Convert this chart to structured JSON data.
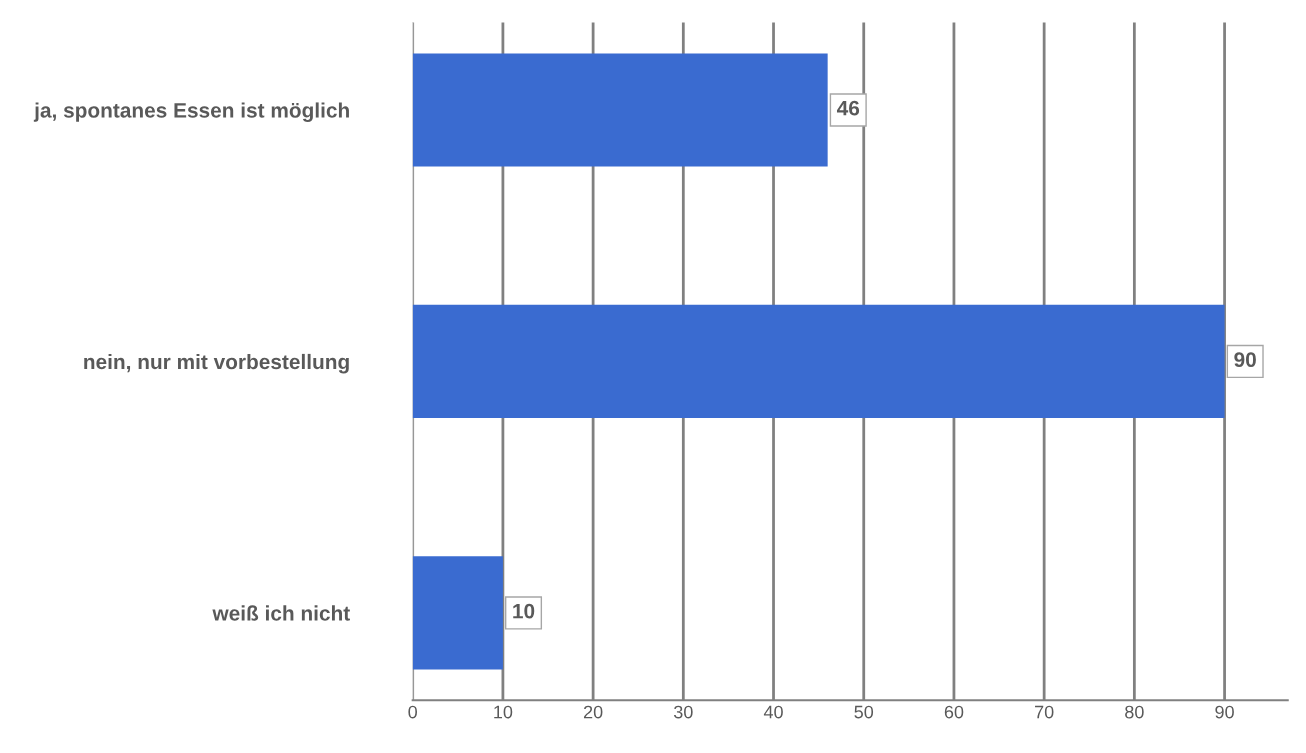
{
  "chart_data": {
    "type": "bar",
    "orientation": "horizontal",
    "categories": [
      "ja, spontanes Essen ist möglich",
      "nein, nur mit vorbestellung",
      "weiß ich nicht"
    ],
    "values": [
      46,
      90,
      10
    ],
    "color": "#3a6bd0",
    "xlim": [
      0,
      97
    ],
    "xticks": [
      0,
      10,
      20,
      30,
      40,
      50,
      60,
      70,
      80,
      90
    ],
    "grid": "x",
    "data_labels": true
  }
}
